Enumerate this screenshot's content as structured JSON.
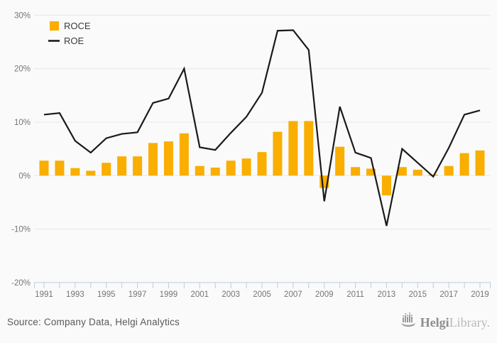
{
  "background_color": "#fafafa",
  "chart_data": {
    "type": "combo-bar-line",
    "title": "",
    "xlabel": "",
    "ylabel": "",
    "x": [
      1991,
      1992,
      1993,
      1994,
      1995,
      1996,
      1997,
      1998,
      1999,
      2000,
      2001,
      2002,
      2003,
      2004,
      2005,
      2006,
      2007,
      2008,
      2009,
      2010,
      2011,
      2012,
      2013,
      2014,
      2015,
      2016,
      2017,
      2018,
      2019
    ],
    "series": [
      {
        "name": "ROCE",
        "type": "bar",
        "color": "#f9ae00",
        "values": [
          2.8,
          2.8,
          1.4,
          0.9,
          2.4,
          3.6,
          3.6,
          6.1,
          6.4,
          7.9,
          1.8,
          1.5,
          2.8,
          3.2,
          4.4,
          8.2,
          10.2,
          10.2,
          -2.3,
          5.4,
          1.6,
          1.3,
          -3.7,
          1.6,
          1.1,
          0.2,
          1.8,
          4.2,
          4.7
        ]
      },
      {
        "name": "ROE",
        "type": "line",
        "color": "#1a1a1a",
        "values": [
          11.4,
          11.7,
          6.5,
          4.3,
          7.0,
          7.8,
          8.1,
          13.6,
          14.4,
          20.0,
          5.3,
          4.8,
          8.0,
          11.0,
          15.5,
          27.1,
          27.2,
          23.5,
          -4.8,
          12.9,
          4.3,
          3.3,
          -9.4,
          5.0,
          2.4,
          -0.2,
          5.2,
          11.4,
          12.2
        ]
      }
    ],
    "ylim": [
      -20,
      30
    ],
    "ytick_values": [
      30,
      20,
      10,
      0,
      -10,
      -20
    ],
    "ytick_labels": [
      "30%",
      "20%",
      "10%",
      "0%",
      "-10%",
      "-20%"
    ],
    "xtick_labels": [
      "1991",
      "1993",
      "1995",
      "1997",
      "1999",
      "2001",
      "2003",
      "2005",
      "2007",
      "2009",
      "2011",
      "2013",
      "2015",
      "2017",
      "2019"
    ],
    "grid": "horizontal",
    "grid_color": "#e8e8e8",
    "axis_color": "#bfcbdf",
    "tick_label_color": "#757575",
    "legend_position": "top-left"
  },
  "legend": {
    "items": [
      {
        "label": "ROCE",
        "swatch": "square",
        "color": "#f9ae00"
      },
      {
        "label": "ROE",
        "swatch": "line",
        "color": "#1a1a1a"
      }
    ],
    "label_color": "#3c3c3c"
  },
  "footer": {
    "source_text": "Source: Company Data, Helgi Analytics",
    "logo": {
      "icon": "ship-bar-chart-icon",
      "icon_color": "#9a9a9a",
      "name_bold": "Helgi",
      "name_light": "Library."
    }
  }
}
